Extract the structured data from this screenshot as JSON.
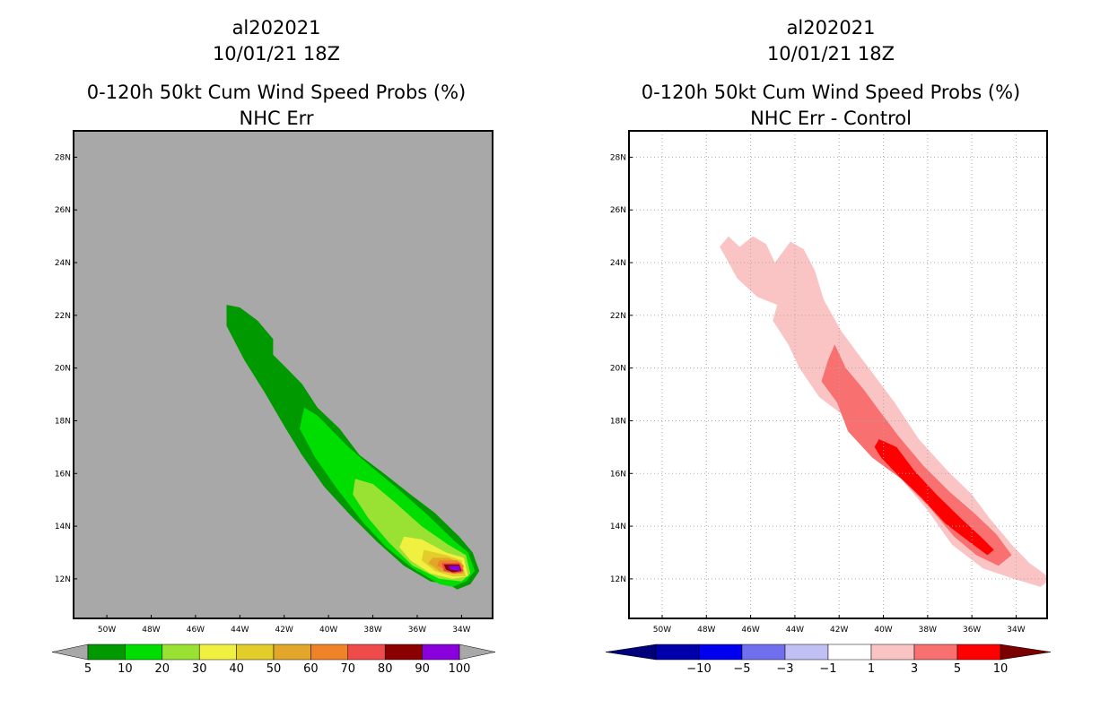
{
  "chart_data": [
    {
      "type": "filled-contour-map",
      "storm_id": "al202021",
      "datetime": "10/01/21 18Z",
      "title": "0-120h 50kt Cum Wind Speed Probs (%)",
      "subtitle": "NHC Err",
      "x_ticks": [
        "50W",
        "48W",
        "46W",
        "44W",
        "42W",
        "40W",
        "38W",
        "36W",
        "34W"
      ],
      "y_ticks": [
        "28N",
        "26N",
        "24N",
        "22N",
        "20N",
        "18N",
        "16N",
        "14N",
        "12N"
      ],
      "xlim_lon": [
        -51.5,
        -32.6
      ],
      "ylim_lat": [
        10.5,
        29
      ],
      "background": "#a8a8a8",
      "gridlines": false,
      "levels": [
        5,
        10,
        20,
        30,
        40,
        50,
        60,
        70,
        80,
        90,
        100
      ],
      "colors": [
        "#009900",
        "#00dd00",
        "#99e233",
        "#f0f040",
        "#e2cd2a",
        "#e2a62a",
        "#f08228",
        "#f04b4b",
        "#8b0000",
        "#8a00dd"
      ],
      "colorbar_ends": "#a8a8a8",
      "contours": [
        {
          "level": 5,
          "color": "#009900",
          "lonlat": [
            [
              -44.6,
              22.4
            ],
            [
              -44.0,
              22.3
            ],
            [
              -43.2,
              21.8
            ],
            [
              -42.5,
              21.1
            ],
            [
              -42.5,
              20.5
            ],
            [
              -41.9,
              20.0
            ],
            [
              -41.2,
              19.4
            ],
            [
              -40.5,
              18.5
            ],
            [
              -39.5,
              17.7
            ],
            [
              -38.6,
              16.7
            ],
            [
              -37.5,
              16.0
            ],
            [
              -36.3,
              15.2
            ],
            [
              -35.2,
              14.5
            ],
            [
              -34.1,
              13.6
            ],
            [
              -33.5,
              13.0
            ],
            [
              -33.2,
              12.3
            ],
            [
              -33.6,
              11.8
            ],
            [
              -34.2,
              11.6
            ],
            [
              -34.6,
              11.8
            ],
            [
              -35.4,
              11.9
            ],
            [
              -36.6,
              12.5
            ],
            [
              -37.8,
              13.4
            ],
            [
              -39.0,
              14.4
            ],
            [
              -40.2,
              15.5
            ],
            [
              -41.2,
              16.7
            ],
            [
              -42.0,
              17.8
            ],
            [
              -42.9,
              19.1
            ],
            [
              -43.8,
              20.3
            ],
            [
              -44.6,
              21.6
            ]
          ]
        },
        {
          "level": 10,
          "color": "#00dd00",
          "lonlat": [
            [
              -41.1,
              18.5
            ],
            [
              -40.5,
              18.2
            ],
            [
              -39.8,
              17.6
            ],
            [
              -39.1,
              17.0
            ],
            [
              -38.0,
              16.2
            ],
            [
              -36.7,
              15.3
            ],
            [
              -35.5,
              14.4
            ],
            [
              -34.4,
              13.5
            ],
            [
              -33.7,
              13.0
            ],
            [
              -33.4,
              12.3
            ],
            [
              -33.8,
              11.9
            ],
            [
              -34.4,
              11.7
            ],
            [
              -35.0,
              11.8
            ],
            [
              -36.2,
              12.4
            ],
            [
              -37.4,
              13.2
            ],
            [
              -38.5,
              14.2
            ],
            [
              -39.6,
              15.4
            ],
            [
              -40.6,
              16.6
            ],
            [
              -41.3,
              17.7
            ]
          ]
        },
        {
          "level": 20,
          "color": "#99e233",
          "lonlat": [
            [
              -38.8,
              15.8
            ],
            [
              -38.0,
              15.6
            ],
            [
              -37.0,
              14.9
            ],
            [
              -35.8,
              14.0
            ],
            [
              -34.6,
              13.3
            ],
            [
              -33.8,
              12.9
            ],
            [
              -33.6,
              12.2
            ],
            [
              -34.0,
              11.9
            ],
            [
              -35.0,
              12.0
            ],
            [
              -36.2,
              12.5
            ],
            [
              -37.3,
              13.4
            ],
            [
              -38.2,
              14.3
            ],
            [
              -38.9,
              15.2
            ]
          ]
        },
        {
          "level": 30,
          "color": "#f0f040",
          "lonlat": [
            [
              -36.6,
              13.6
            ],
            [
              -35.8,
              13.5
            ],
            [
              -34.7,
              13.0
            ],
            [
              -33.9,
              12.8
            ],
            [
              -33.7,
              12.1
            ],
            [
              -34.4,
              12.0
            ],
            [
              -35.4,
              12.2
            ],
            [
              -36.3,
              12.7
            ],
            [
              -36.8,
              13.2
            ]
          ]
        },
        {
          "level": 40,
          "color": "#e2cd2a",
          "lonlat": [
            [
              -35.7,
              13.1
            ],
            [
              -34.7,
              12.9
            ],
            [
              -34.0,
              12.7
            ],
            [
              -33.8,
              12.1
            ],
            [
              -34.4,
              12.1
            ],
            [
              -35.2,
              12.3
            ],
            [
              -35.8,
              12.7
            ]
          ]
        },
        {
          "level": 50,
          "color": "#e2a62a",
          "lonlat": [
            [
              -35.3,
              12.8
            ],
            [
              -34.6,
              12.8
            ],
            [
              -34.0,
              12.6
            ],
            [
              -33.9,
              12.2
            ],
            [
              -34.4,
              12.2
            ],
            [
              -35.0,
              12.3
            ],
            [
              -35.5,
              12.6
            ]
          ]
        },
        {
          "level": 60,
          "color": "#f08228",
          "lonlat": [
            [
              -35.0,
              12.7
            ],
            [
              -34.2,
              12.7
            ],
            [
              -33.9,
              12.5
            ],
            [
              -34.0,
              12.2
            ],
            [
              -34.6,
              12.3
            ],
            [
              -35.1,
              12.5
            ]
          ]
        },
        {
          "level": 70,
          "color": "#f04b4b",
          "lonlat": [
            [
              -34.9,
              12.6
            ],
            [
              -34.1,
              12.6
            ],
            [
              -33.9,
              12.3
            ],
            [
              -34.3,
              12.2
            ],
            [
              -34.8,
              12.3
            ]
          ]
        },
        {
          "level": 80,
          "color": "#8b0000",
          "lonlat": [
            [
              -34.8,
              12.55
            ],
            [
              -34.1,
              12.55
            ],
            [
              -34.0,
              12.3
            ],
            [
              -34.4,
              12.25
            ],
            [
              -34.7,
              12.35
            ]
          ]
        },
        {
          "level": 90,
          "color": "#8a00dd",
          "lonlat": [
            [
              -34.6,
              12.5
            ],
            [
              -34.1,
              12.5
            ],
            [
              -34.05,
              12.3
            ],
            [
              -34.5,
              12.35
            ]
          ]
        }
      ]
    },
    {
      "type": "filled-contour-map",
      "storm_id": "al202021",
      "datetime": "10/01/21 18Z",
      "title": "0-120h 50kt Cum Wind Speed Probs (%)",
      "subtitle": "NHC Err - Control",
      "x_ticks": [
        "50W",
        "48W",
        "46W",
        "44W",
        "42W",
        "40W",
        "38W",
        "36W",
        "34W"
      ],
      "y_ticks": [
        "28N",
        "26N",
        "24N",
        "22N",
        "20N",
        "18N",
        "16N",
        "14N",
        "12N"
      ],
      "xlim_lon": [
        -51.5,
        -32.6
      ],
      "ylim_lat": [
        10.5,
        29
      ],
      "background": "#ffffff",
      "gridlines": true,
      "levels": [
        -10,
        -5,
        -3,
        -1,
        1,
        3,
        5,
        10
      ],
      "colors": [
        "#0000aa",
        "#0000ee",
        "#7070ee",
        "#c0c0f4",
        "#ffffff",
        "#fbc4c4",
        "#f87070",
        "#ff0000"
      ],
      "colorbar_ends": [
        "#00007a",
        "#7a0000"
      ],
      "contours": [
        {
          "level": 1,
          "color": "#fbc4c4",
          "lonlat": [
            [
              -47.4,
              24.6
            ],
            [
              -47.0,
              25.0
            ],
            [
              -46.5,
              24.6
            ],
            [
              -45.9,
              25.0
            ],
            [
              -45.3,
              24.7
            ],
            [
              -44.9,
              24.0
            ],
            [
              -44.2,
              24.8
            ],
            [
              -43.6,
              24.5
            ],
            [
              -43.1,
              23.7
            ],
            [
              -42.7,
              22.6
            ],
            [
              -41.9,
              21.4
            ],
            [
              -41.2,
              20.6
            ],
            [
              -40.3,
              19.6
            ],
            [
              -39.5,
              18.7
            ],
            [
              -38.4,
              17.3
            ],
            [
              -37.1,
              16.1
            ],
            [
              -36.0,
              15.2
            ],
            [
              -35.2,
              14.3
            ],
            [
              -34.2,
              13.3
            ],
            [
              -33.4,
              12.6
            ],
            [
              -32.4,
              12.0
            ],
            [
              -32.9,
              11.7
            ],
            [
              -34.1,
              12.0
            ],
            [
              -35.5,
              12.4
            ],
            [
              -36.9,
              13.3
            ],
            [
              -38.0,
              14.6
            ],
            [
              -39.4,
              16.0
            ],
            [
              -40.7,
              17.0
            ],
            [
              -41.8,
              18.2
            ],
            [
              -42.9,
              18.9
            ],
            [
              -43.8,
              20.0
            ],
            [
              -44.3,
              20.9
            ],
            [
              -45.0,
              21.8
            ],
            [
              -44.8,
              22.4
            ],
            [
              -45.7,
              22.7
            ],
            [
              -46.6,
              23.4
            ]
          ]
        },
        {
          "level": 3,
          "color": "#f87070",
          "lonlat": [
            [
              -42.2,
              20.9
            ],
            [
              -41.7,
              20.0
            ],
            [
              -40.9,
              19.2
            ],
            [
              -40.2,
              18.4
            ],
            [
              -39.3,
              17.4
            ],
            [
              -38.2,
              16.3
            ],
            [
              -37.0,
              15.3
            ],
            [
              -35.9,
              14.5
            ],
            [
              -34.9,
              13.7
            ],
            [
              -34.2,
              12.9
            ],
            [
              -34.8,
              12.5
            ],
            [
              -35.8,
              12.9
            ],
            [
              -36.8,
              13.6
            ],
            [
              -37.9,
              14.7
            ],
            [
              -39.2,
              15.8
            ],
            [
              -40.5,
              16.6
            ],
            [
              -41.6,
              17.6
            ],
            [
              -42.1,
              18.7
            ],
            [
              -42.8,
              19.5
            ],
            [
              -42.5,
              20.3
            ]
          ]
        },
        {
          "level": 5,
          "color": "#ff0000",
          "lonlat": [
            [
              -40.2,
              17.3
            ],
            [
              -39.4,
              17.0
            ],
            [
              -38.6,
              16.1
            ],
            [
              -37.6,
              15.2
            ],
            [
              -36.5,
              14.3
            ],
            [
              -35.6,
              13.6
            ],
            [
              -35.0,
              13.1
            ],
            [
              -35.3,
              12.9
            ],
            [
              -36.1,
              13.4
            ],
            [
              -37.2,
              14.1
            ],
            [
              -38.3,
              15.1
            ],
            [
              -39.3,
              15.9
            ],
            [
              -40.1,
              16.6
            ],
            [
              -40.4,
              17.0
            ]
          ]
        }
      ]
    }
  ],
  "colorbars": [
    {
      "labels": [
        "5",
        "10",
        "20",
        "30",
        "40",
        "50",
        "60",
        "70",
        "80",
        "90",
        "100"
      ]
    },
    {
      "labels": [
        "-10",
        "-5",
        "-3",
        "-1",
        "1",
        "3",
        "5",
        "10"
      ]
    }
  ]
}
